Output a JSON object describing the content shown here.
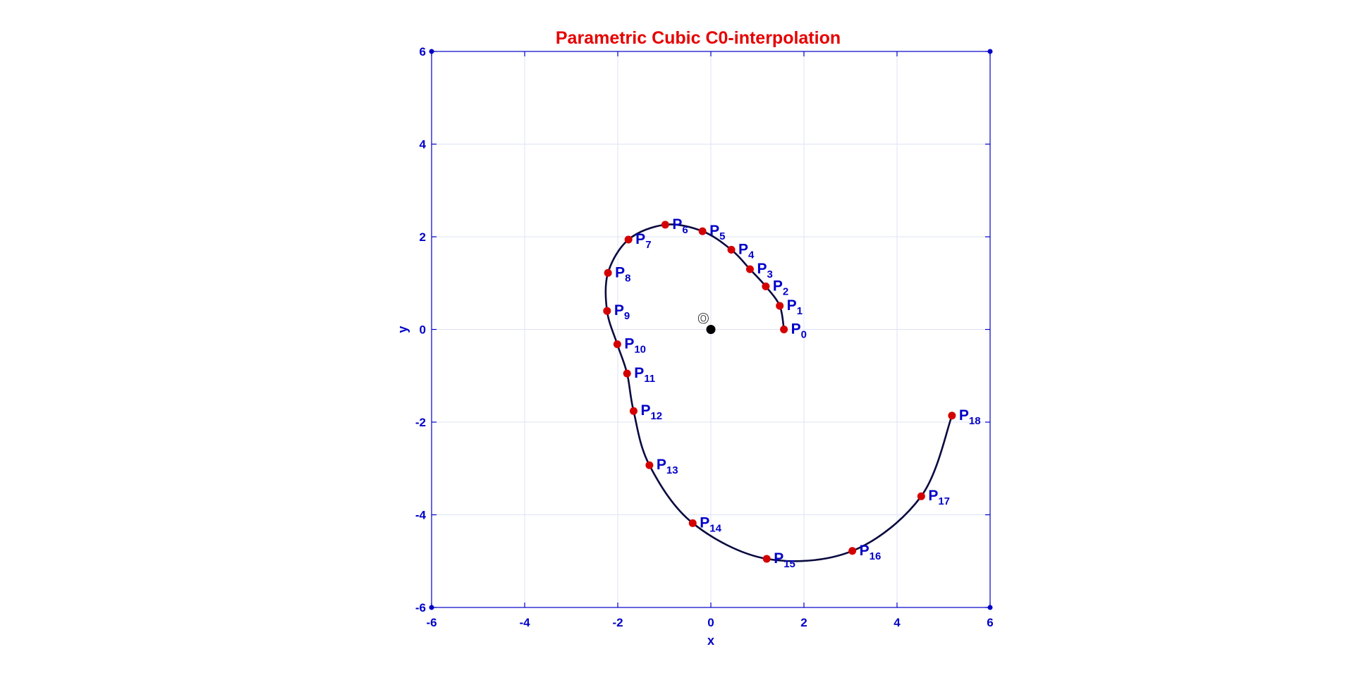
{
  "chart_data": {
    "type": "line",
    "title": "Parametric Cubic C0-interpolation",
    "xlabel": "x",
    "ylabel": "y",
    "xlim": [
      -6,
      6
    ],
    "ylim": [
      -6,
      6
    ],
    "xticks": [
      -6,
      -4,
      -2,
      0,
      2,
      4,
      6
    ],
    "yticks": [
      -6,
      -4,
      -2,
      0,
      2,
      4,
      6
    ],
    "xtick_labels": [
      "-6",
      "-4",
      "-2",
      "0",
      "2",
      "4",
      "6"
    ],
    "ytick_labels": [
      "-6",
      "-4",
      "-2",
      "0",
      "2",
      "4",
      "6"
    ],
    "grid": true,
    "colors": {
      "title": "#e60000",
      "axes": "#0000c8",
      "grid": "#dfe3f5",
      "curve": "#0a0a40",
      "points": "#d40000",
      "labels": "#0000c8",
      "origin": "#000000"
    },
    "origin": {
      "label": "O",
      "x": 0,
      "y": 0
    },
    "points": [
      {
        "name": "P",
        "sub": "0",
        "x": 1.57,
        "y": 0.0
      },
      {
        "name": "P",
        "sub": "1",
        "x": 1.48,
        "y": 0.51
      },
      {
        "name": "P",
        "sub": "2",
        "x": 1.18,
        "y": 0.93
      },
      {
        "name": "P",
        "sub": "3",
        "x": 0.84,
        "y": 1.3
      },
      {
        "name": "P",
        "sub": "4",
        "x": 0.44,
        "y": 1.72
      },
      {
        "name": "P",
        "sub": "5",
        "x": -0.18,
        "y": 2.12
      },
      {
        "name": "P",
        "sub": "6",
        "x": -0.98,
        "y": 2.26
      },
      {
        "name": "P",
        "sub": "7",
        "x": -1.77,
        "y": 1.94
      },
      {
        "name": "P",
        "sub": "8",
        "x": -2.21,
        "y": 1.22
      },
      {
        "name": "P",
        "sub": "9",
        "x": -2.23,
        "y": 0.4
      },
      {
        "name": "P",
        "sub": "10",
        "x": -2.01,
        "y": -0.32
      },
      {
        "name": "P",
        "sub": "11",
        "x": -1.8,
        "y": -0.95
      },
      {
        "name": "P",
        "sub": "12",
        "x": -1.66,
        "y": -1.76
      },
      {
        "name": "P",
        "sub": "13",
        "x": -1.32,
        "y": -2.93
      },
      {
        "name": "P",
        "sub": "14",
        "x": -0.39,
        "y": -4.18
      },
      {
        "name": "P",
        "sub": "15",
        "x": 1.2,
        "y": -4.95
      },
      {
        "name": "P",
        "sub": "16",
        "x": 3.04,
        "y": -4.78
      },
      {
        "name": "P",
        "sub": "17",
        "x": 4.52,
        "y": -3.6
      },
      {
        "name": "P",
        "sub": "18",
        "x": 5.18,
        "y": -1.86
      }
    ]
  }
}
